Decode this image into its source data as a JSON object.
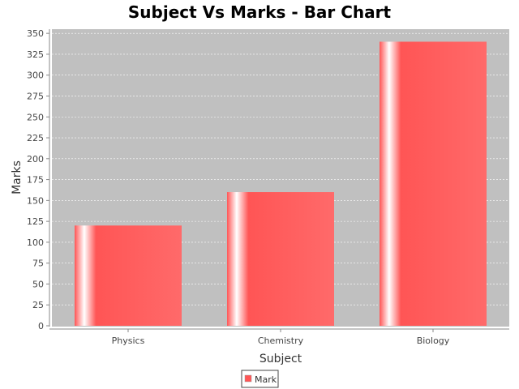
{
  "chart_data": {
    "type": "bar",
    "title": "Subject Vs Marks - Bar Chart",
    "xlabel": "Subject",
    "ylabel": "Marks",
    "categories": [
      "Physics",
      "Chemistry",
      "Biology"
    ],
    "series": [
      {
        "name": "Mark",
        "values": [
          120,
          160,
          340
        ],
        "color": "#ff5555"
      }
    ],
    "ylim": [
      0,
      355
    ],
    "yticks": [
      0,
      25,
      50,
      75,
      100,
      125,
      150,
      175,
      200,
      225,
      250,
      275,
      300,
      325,
      350
    ],
    "grid": true,
    "legend_position": "bottom-center",
    "plot_background": "#c0c0c0"
  }
}
